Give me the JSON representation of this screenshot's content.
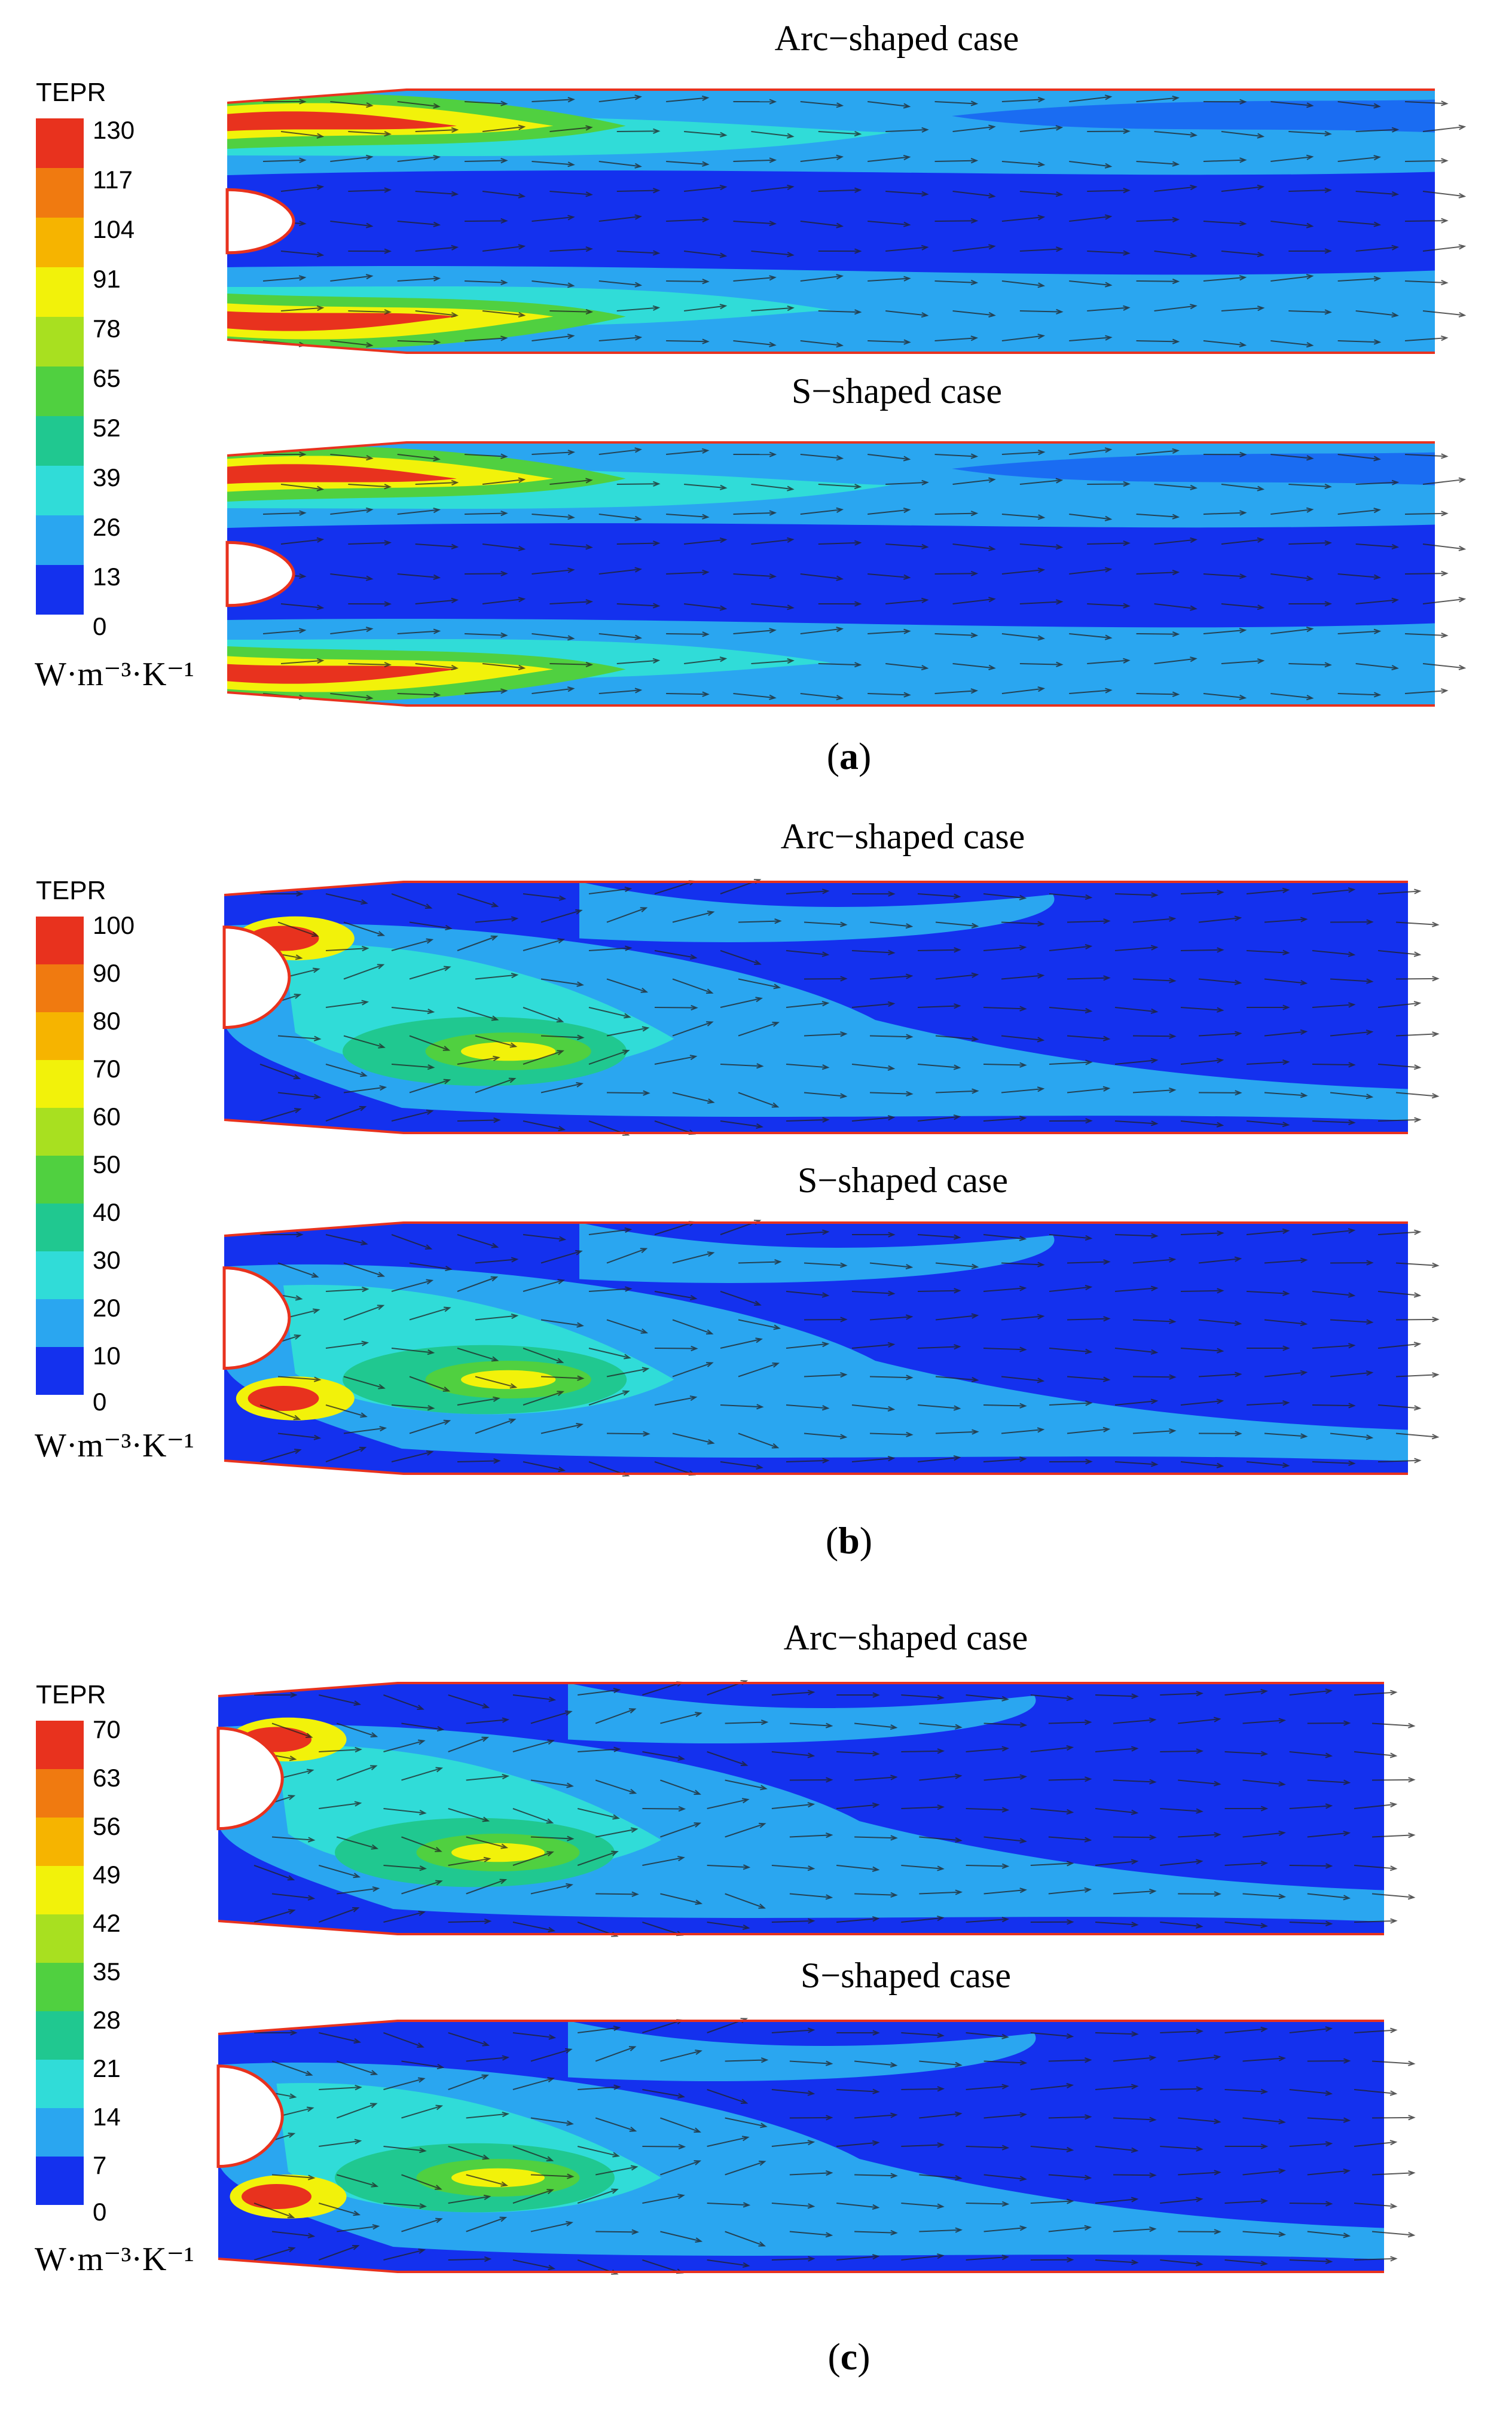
{
  "figure": {
    "panels": [
      {
        "id": "a",
        "label_open": "(",
        "label_letter": "a",
        "label_close": ")",
        "legend": {
          "title": "TEPR",
          "ticks": [
            "130",
            "117",
            "104",
            "91",
            "78",
            "65",
            "52",
            "39",
            "26",
            "13",
            "0"
          ],
          "unit": "W·m⁻³·K⁻¹"
        },
        "cases": [
          {
            "title": "Arc−shaped case",
            "type": "arc"
          },
          {
            "title": "S−shaped case",
            "type": "s"
          }
        ]
      },
      {
        "id": "b",
        "label_open": "(",
        "label_letter": "b",
        "label_close": ")",
        "legend": {
          "title": "TEPR",
          "ticks": [
            "100",
            "90",
            "80",
            "70",
            "60",
            "50",
            "40",
            "30",
            "20",
            "10",
            "0"
          ],
          "unit": "W·m⁻³·K⁻¹"
        },
        "cases": [
          {
            "title": "Arc−shaped case",
            "type": "arc"
          },
          {
            "title": "S−shaped case",
            "type": "s"
          }
        ]
      },
      {
        "id": "c",
        "label_open": "(",
        "label_letter": "c",
        "label_close": ")",
        "legend": {
          "title": "TEPR",
          "ticks": [
            "70",
            "63",
            "56",
            "49",
            "42",
            "35",
            "28",
            "21",
            "14",
            "7",
            "0"
          ],
          "unit": "W·m⁻³·K⁻¹"
        },
        "cases": [
          {
            "title": "Arc−shaped case",
            "type": "arc"
          },
          {
            "title": "S−shaped case",
            "type": "s"
          }
        ]
      }
    ],
    "colormap": [
      "#e8321e",
      "#f07a10",
      "#f6b400",
      "#f2f20a",
      "#a8e020",
      "#50d040",
      "#20c890",
      "#30dcd8",
      "#2aa6f0",
      "#1a6cf2",
      "#1431ee"
    ]
  }
}
